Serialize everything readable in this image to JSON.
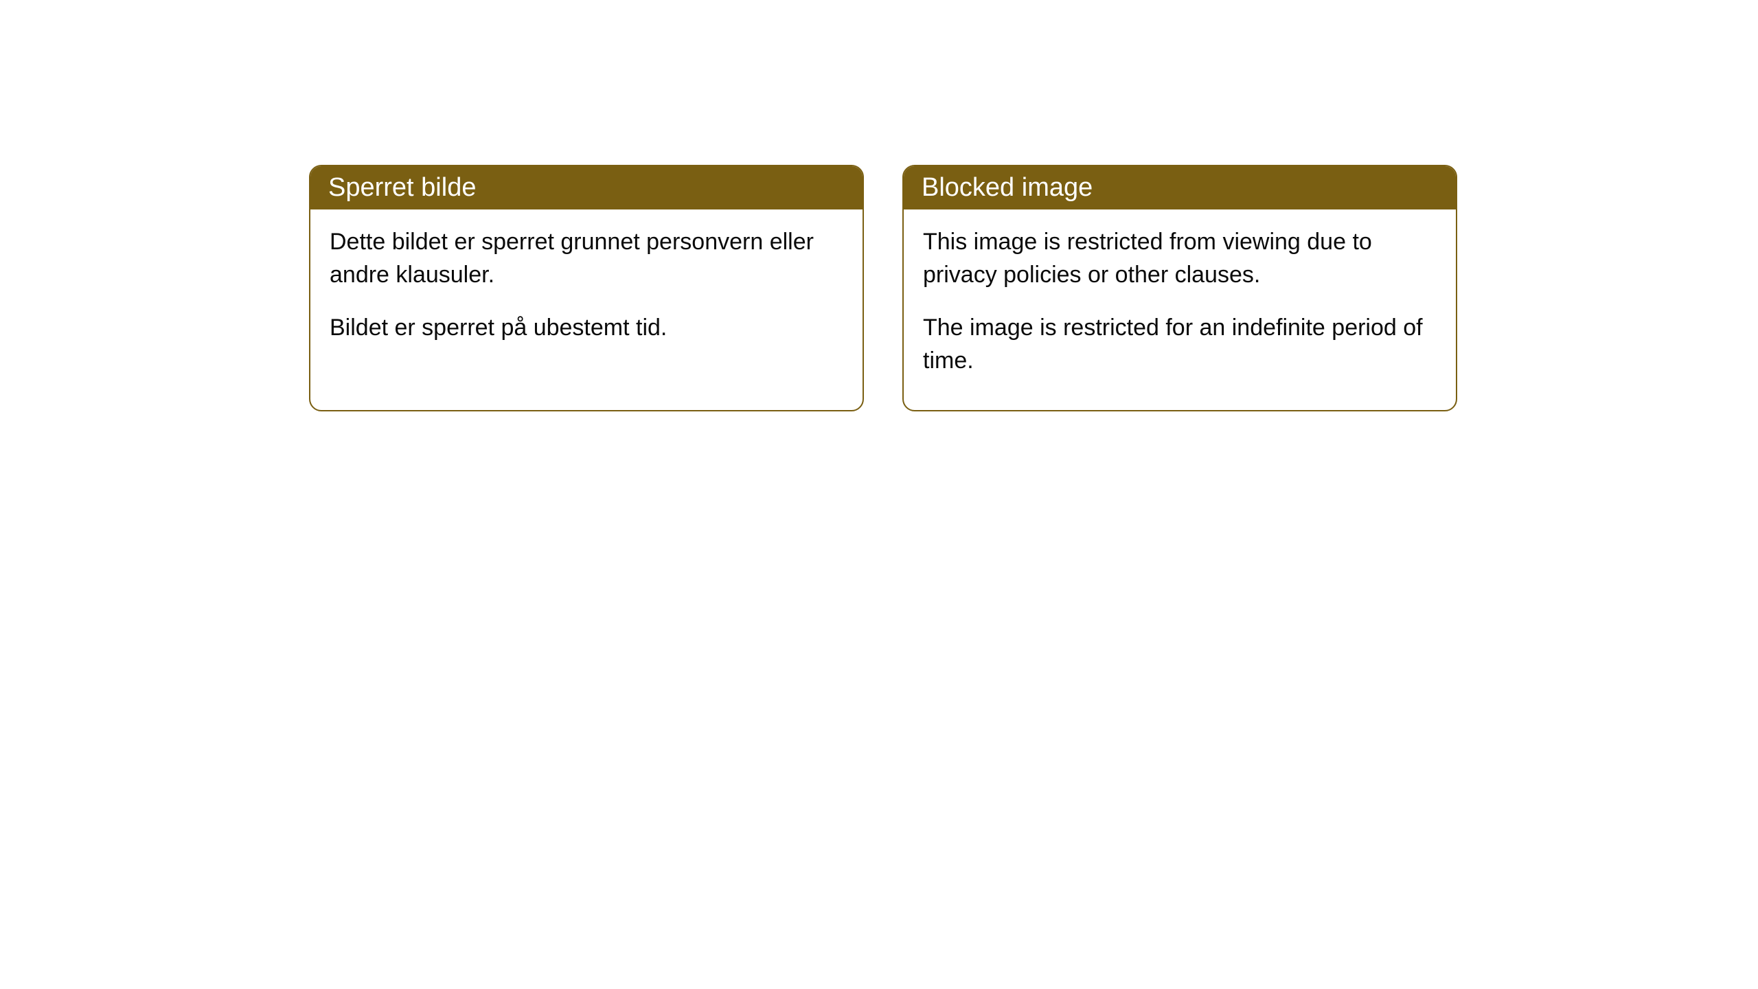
{
  "cards": [
    {
      "title": "Sperret bilde",
      "paragraph1": "Dette bildet er sperret grunnet personvern eller andre klausuler.",
      "paragraph2": "Bildet er sperret på ubestemt tid."
    },
    {
      "title": "Blocked image",
      "paragraph1": "This image is restricted from viewing due to privacy policies or other clauses.",
      "paragraph2": "The image is restricted for an indefinite period of time."
    }
  ],
  "styling": {
    "header_bg_color": "#7a5f12",
    "header_text_color": "#ffffff",
    "border_color": "#7a5f12",
    "body_bg_color": "#ffffff",
    "body_text_color": "#0a0a0a",
    "border_radius": 18,
    "header_fontsize": 38,
    "body_fontsize": 34
  }
}
